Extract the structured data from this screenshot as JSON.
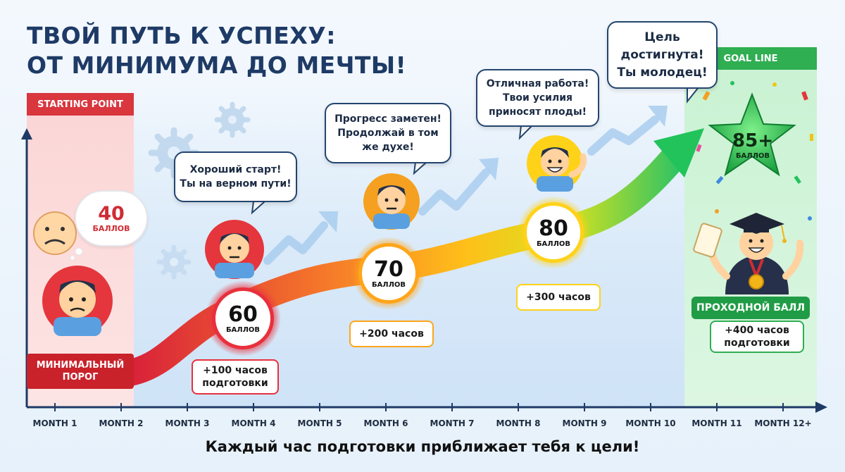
{
  "title": {
    "line1": "ТВОЙ ПУТЬ К УСПЕХУ:",
    "line2": "ОТ МИНИМУМА ДО МЕЧТЫ!"
  },
  "zones": {
    "start_label": "STARTING POINT",
    "goal_label": "GOAL LINE"
  },
  "bubbles": {
    "b1": {
      "line1": "Хороший старт!",
      "line2": "Ты на верном пути!"
    },
    "b2": {
      "line1": "Прогресс заметен!",
      "line2": "Продолжай в том",
      "line3": "же духе!"
    },
    "b3": {
      "line1": "Отличная работа!",
      "line2": "Твои усилия",
      "line3": "приносят плоды!"
    },
    "b4": {
      "line1": "Цель",
      "line2": "достигнута!",
      "line3": "Ты молодец!"
    }
  },
  "scores": {
    "s40": {
      "value": "40",
      "unit": "БАЛЛОВ"
    },
    "s60": {
      "value": "60",
      "unit": "БАЛЛОВ"
    },
    "s70": {
      "value": "70",
      "unit": "БАЛЛОВ"
    },
    "s80": {
      "value": "80",
      "unit": "БАЛЛОВ"
    },
    "s85": {
      "value": "85+",
      "unit": "БАЛЛОВ"
    }
  },
  "hours": {
    "h100": {
      "line1": "+100 часов",
      "line2": "подготовки"
    },
    "h200": {
      "line1": "+200 часов"
    },
    "h300": {
      "line1": "+300 часов"
    },
    "h400": {
      "line1": "+400 часов",
      "line2": "подготовки"
    }
  },
  "labels": {
    "min_threshold_line1": "МИНИМАЛЬНЫЙ",
    "min_threshold_line2": "ПОРОГ",
    "pass_score": "ПРОХОДНОЙ БАЛЛ"
  },
  "months": [
    "MONTH 1",
    "MONTH 2",
    "MONTH 3",
    "MONTH 4",
    "MONTH 5",
    "MONTH 6",
    "MONTH 7",
    "MONTH 8",
    "MONTH 9",
    "MONTH 10",
    "MONTH 11",
    "MONTH 12+"
  ],
  "tagline": "Каждый час подготовки приближает тебя к цели!",
  "colors": {
    "title": "#1e3a66",
    "start_red": "#d9363e",
    "goal_green": "#2fae52",
    "path_start": "#e8303c",
    "path_mid": "#ffb21a",
    "path_end": "#22c35b",
    "axis": "#1e3a66"
  },
  "icons": [
    "sad-face-icon",
    "gear-icon",
    "student-avatar-icon",
    "graduation-cap-icon",
    "star-icon",
    "confetti-icon",
    "diploma-icon",
    "medal-icon",
    "arrow-up-icon"
  ]
}
